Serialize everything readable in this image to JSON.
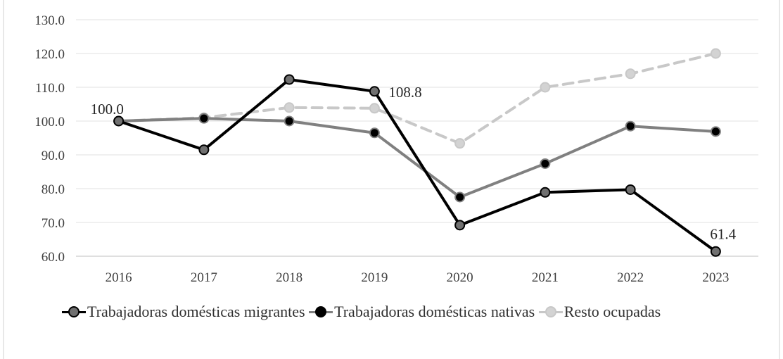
{
  "chart_data": {
    "type": "line",
    "categories": [
      "2016",
      "2017",
      "2018",
      "2019",
      "2020",
      "2021",
      "2022",
      "2023"
    ],
    "ylim": [
      60,
      130
    ],
    "yticks": [
      "60.0",
      "70.0",
      "80.0",
      "90.0",
      "100.0",
      "110.0",
      "120.0",
      "130.0"
    ],
    "grid": true,
    "legend_position": "bottom",
    "series": [
      {
        "name": "Trabajadoras domésticas migrantes",
        "values": [
          100.0,
          91.5,
          112.3,
          108.8,
          69.2,
          78.9,
          79.7,
          61.4
        ],
        "color": "#000000",
        "marker_fill": "#707070",
        "dash": "none"
      },
      {
        "name": "Trabajadoras domésticas nativas",
        "values": [
          100.0,
          100.8,
          100.0,
          96.5,
          77.5,
          87.4,
          98.5,
          96.9
        ],
        "color": "#808080",
        "marker_fill": "#000000",
        "dash": "none"
      },
      {
        "name": "Resto ocupadas",
        "values": [
          100.0,
          101.0,
          104.0,
          103.8,
          93.4,
          110.0,
          114.0,
          120.0
        ],
        "color": "#c8c8c8",
        "marker_fill": "#d3d3d3",
        "dash": "dashed"
      }
    ],
    "annotations": [
      {
        "text": "100.0",
        "category": "2016",
        "value": 100.0
      },
      {
        "text": "108.8",
        "category": "2019",
        "value": 108.8
      },
      {
        "text": "61.4",
        "category": "2023",
        "value": 61.4
      }
    ]
  },
  "legend": {
    "items": [
      {
        "label": "Trabajadoras domésticas migrantes"
      },
      {
        "label": "Trabajadoras domésticas nativas"
      },
      {
        "label": "Resto ocupadas"
      }
    ]
  }
}
